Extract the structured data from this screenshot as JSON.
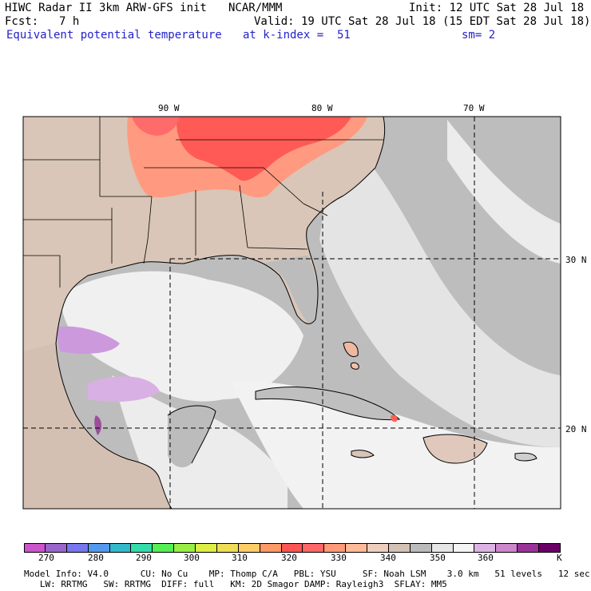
{
  "header": {
    "title_left": "HIWC Radar II 3km ARW-GFS init",
    "title_center": "NCAR/MMM",
    "init": "Init: 12 UTC Sat 28 Jul 18",
    "fcst_label": "Fcst:",
    "fcst_value": "7 h",
    "valid": "Valid: 19 UTC Sat 28 Jul 18 (15 EDT Sat 28 Jul 18)",
    "field": "Equivalent potential temperature",
    "level": "at k-index =  51",
    "smoothing": "sm= 2"
  },
  "map": {
    "lon_labels": [
      "90 W",
      "80 W",
      "70 W"
    ],
    "lat_labels": [
      "30 N",
      "20 N"
    ]
  },
  "colorbar": {
    "colors": [
      "#cc55cc",
      "#9966cc",
      "#7777ee",
      "#5599ee",
      "#33bbcc",
      "#33ddaa",
      "#55ee55",
      "#99ee44",
      "#ddee44",
      "#eedd55",
      "#ffcc66",
      "#ff9966",
      "#ff5555",
      "#ff6666",
      "#ff9977",
      "#ffbb99",
      "#eecfbf",
      "#d4c2b6",
      "#bbbbbb",
      "#e6e6e6",
      "#f5f5f5",
      "#ddb3e6",
      "#cc88cc",
      "#993399",
      "#6b0066"
    ],
    "ticks": [
      "270",
      "280",
      "290",
      "300",
      "310",
      "320",
      "330",
      "340",
      "350",
      "360",
      "K"
    ]
  },
  "footer": {
    "line1": "Model Info: V4.0      CU: No Cu    MP: Thomp C/A   PBL: YSU     SF: Noah LSM    3.0 km   51 levels   12 sec",
    "line2": "   LW: RRTMG   SW: RRTMG  DIFF: full   KM: 2D Smagor DAMP: Rayleigh3  SFLAY: MM5"
  }
}
